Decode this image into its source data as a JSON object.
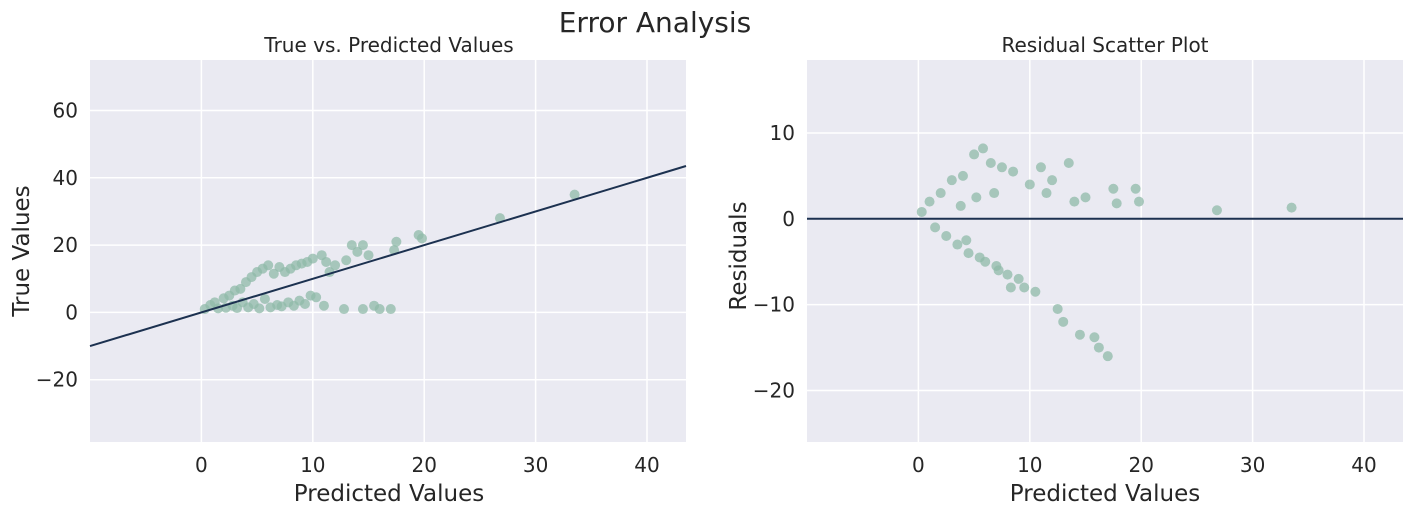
{
  "figure": {
    "suptitle": "Error Analysis"
  },
  "colors": {
    "axes_bg": "#eaeaf2",
    "grid": "#ffffff",
    "points": "#8fbaa8",
    "line": "#1c3150"
  },
  "chart_data": [
    {
      "type": "scatter",
      "title": "True vs. Predicted Values",
      "xlabel": "Predicted Values",
      "ylabel": "True Values",
      "xlim": [
        -10,
        43.5
      ],
      "ylim": [
        -38.5,
        75
      ],
      "xticks": [
        0,
        10,
        20,
        30,
        40
      ],
      "yticks": [
        -20,
        0,
        20,
        40,
        60
      ],
      "grid": true,
      "reference_line": {
        "kind": "identity",
        "slope": 1,
        "intercept": 0
      },
      "series": [
        {
          "points": [
            [
              0.3,
              1.0
            ],
            [
              0.8,
              2.2
            ],
            [
              1.2,
              3.0
            ],
            [
              1.5,
              1.2
            ],
            [
              2.0,
              4.2
            ],
            [
              2.2,
              1.4
            ],
            [
              2.5,
              5.0
            ],
            [
              2.8,
              2.0
            ],
            [
              3.0,
              6.5
            ],
            [
              3.2,
              1.3
            ],
            [
              3.5,
              7.0
            ],
            [
              3.7,
              3.0
            ],
            [
              4.0,
              9.0
            ],
            [
              4.2,
              1.5
            ],
            [
              4.5,
              10.5
            ],
            [
              4.7,
              2.5
            ],
            [
              5.0,
              12.0
            ],
            [
              5.2,
              1.2
            ],
            [
              5.5,
              13.0
            ],
            [
              5.7,
              4.0
            ],
            [
              6.0,
              14.0
            ],
            [
              6.2,
              1.5
            ],
            [
              6.5,
              11.5
            ],
            [
              6.8,
              2.2
            ],
            [
              7.0,
              13.5
            ],
            [
              7.2,
              1.8
            ],
            [
              7.5,
              12.0
            ],
            [
              7.8,
              3.0
            ],
            [
              8.0,
              13.0
            ],
            [
              8.3,
              2.0
            ],
            [
              8.5,
              14.0
            ],
            [
              8.8,
              3.5
            ],
            [
              9.0,
              14.5
            ],
            [
              9.3,
              2.5
            ],
            [
              9.5,
              15.0
            ],
            [
              9.8,
              5.0
            ],
            [
              10.0,
              16.0
            ],
            [
              10.3,
              4.5
            ],
            [
              10.8,
              17.0
            ],
            [
              11.2,
              15.0
            ],
            [
              11.5,
              12.0
            ],
            [
              12.0,
              14.0
            ],
            [
              13.0,
              15.5
            ],
            [
              13.5,
              20.0
            ],
            [
              14.0,
              18.0
            ],
            [
              14.5,
              20.0
            ],
            [
              15.0,
              17.0
            ],
            [
              17.3,
              18.5
            ],
            [
              17.5,
              21.0
            ],
            [
              19.5,
              23.0
            ],
            [
              19.8,
              22.0
            ],
            [
              26.8,
              28.0
            ],
            [
              33.5,
              35.0
            ],
            [
              11.0,
              2.0
            ],
            [
              12.8,
              1.0
            ],
            [
              14.5,
              1.0
            ],
            [
              15.5,
              2.0
            ],
            [
              16.0,
              1.0
            ],
            [
              17.0,
              1.0
            ]
          ]
        }
      ]
    },
    {
      "type": "scatter",
      "title": "Residual Scatter Plot",
      "xlabel": "Predicted Values",
      "ylabel": "Residuals",
      "xlim": [
        -10,
        43.5
      ],
      "ylim": [
        -26,
        18.5
      ],
      "xticks": [
        0,
        10,
        20,
        30,
        40
      ],
      "yticks": [
        -20,
        -10,
        0,
        10
      ],
      "grid": true,
      "reference_line": {
        "kind": "horizontal",
        "y": 0
      },
      "series": [
        {
          "points": [
            [
              0.3,
              0.8
            ],
            [
              1.0,
              2.0
            ],
            [
              1.5,
              -1.0
            ],
            [
              2.0,
              3.0
            ],
            [
              2.5,
              -2.0
            ],
            [
              3.0,
              4.5
            ],
            [
              3.5,
              -3.0
            ],
            [
              4.0,
              5.0
            ],
            [
              4.5,
              -4.0
            ],
            [
              5.0,
              7.5
            ],
            [
              5.5,
              -4.5
            ],
            [
              5.8,
              8.2
            ],
            [
              6.0,
              -5.0
            ],
            [
              6.5,
              6.5
            ],
            [
              7.0,
              -5.5
            ],
            [
              7.5,
              6.0
            ],
            [
              8.0,
              -6.5
            ],
            [
              8.5,
              5.5
            ],
            [
              9.0,
              -7.0
            ],
            [
              9.5,
              -8.0
            ],
            [
              10.0,
              4.0
            ],
            [
              10.5,
              -8.5
            ],
            [
              11.0,
              6.0
            ],
            [
              11.5,
              3.0
            ],
            [
              12.0,
              4.5
            ],
            [
              12.5,
              -10.5
            ],
            [
              13.0,
              -12.0
            ],
            [
              13.5,
              6.5
            ],
            [
              14.0,
              2.0
            ],
            [
              14.5,
              -13.5
            ],
            [
              15.0,
              2.5
            ],
            [
              15.8,
              -13.8
            ],
            [
              16.2,
              -15.0
            ],
            [
              17.0,
              -16.0
            ],
            [
              17.5,
              3.5
            ],
            [
              17.8,
              1.8
            ],
            [
              19.5,
              3.5
            ],
            [
              19.8,
              2.0
            ],
            [
              26.8,
              1.0
            ],
            [
              33.5,
              1.3
            ],
            [
              8.3,
              -8.0
            ],
            [
              7.2,
              -6.0
            ],
            [
              6.8,
              3.0
            ],
            [
              5.2,
              2.5
            ],
            [
              4.3,
              -2.5
            ],
            [
              3.8,
              1.5
            ]
          ]
        }
      ]
    }
  ]
}
